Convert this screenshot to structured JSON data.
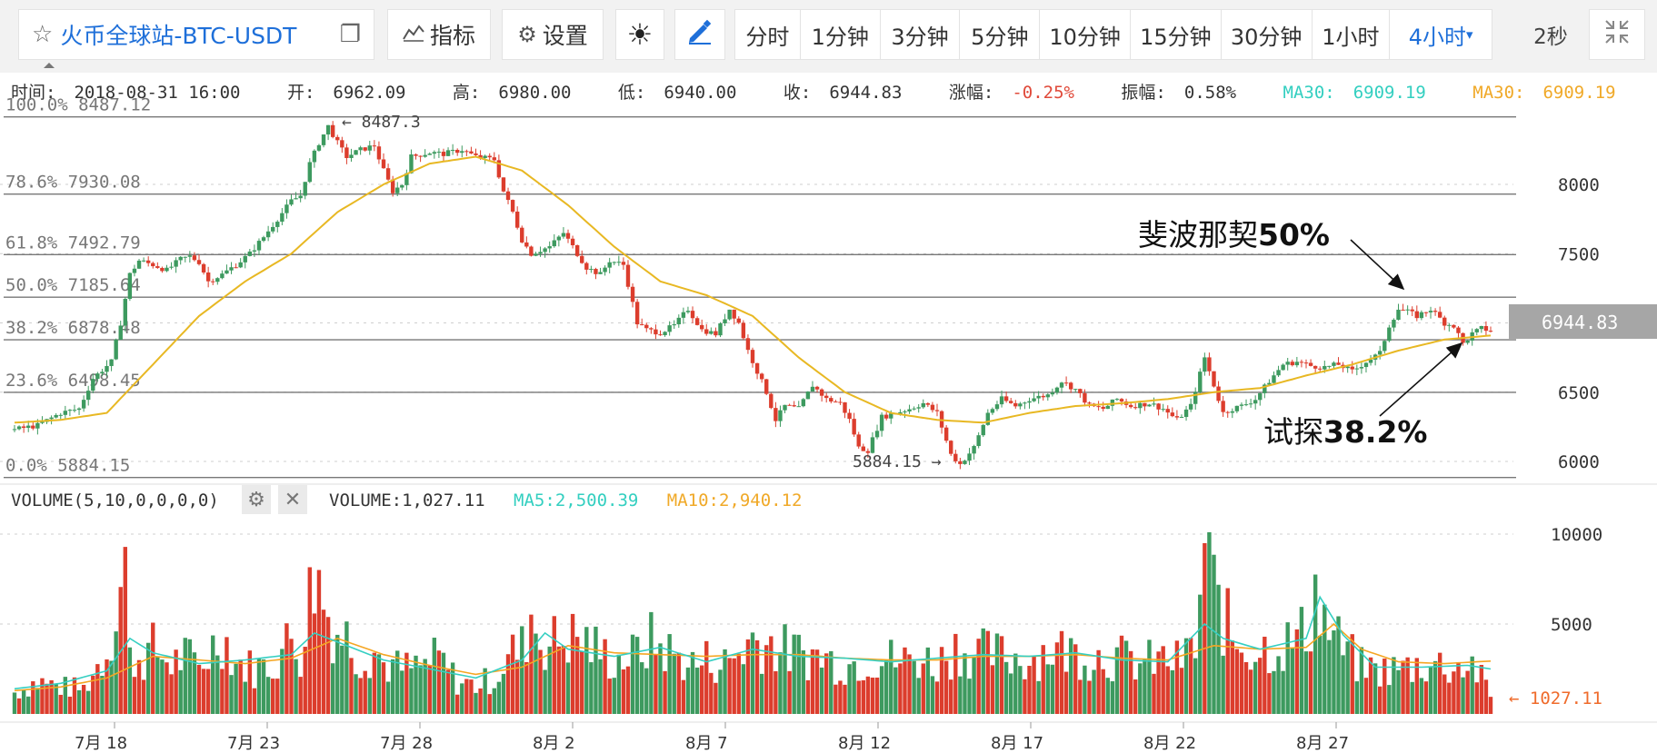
{
  "toolbar": {
    "symbol": "火币全球站-BTC-USDT",
    "star_icon": "star-icon",
    "copy_icon": "copy-icon",
    "indicator_label": "指标",
    "settings_label": "设置",
    "intervals": [
      "分时",
      "1分钟",
      "3分钟",
      "5分钟",
      "10分钟",
      "15分钟",
      "30分钟",
      "1小时",
      "4小时"
    ],
    "active_interval": "4小时",
    "refresh": "2秒"
  },
  "info": {
    "time_label": "时间:",
    "time": "2018-08-31 16:00",
    "open_label": "开:",
    "open": "6962.09",
    "high_label": "高:",
    "high": "6980.00",
    "low_label": "低:",
    "low": "6940.00",
    "close_label": "收:",
    "close": "6944.83",
    "change_label": "涨幅:",
    "change": "-0.25%",
    "amp_label": "振幅:",
    "amp": "0.58%",
    "ma1_label": "MA30:",
    "ma1": "6909.19",
    "ma2_label": "MA30:",
    "ma2": "6909.19"
  },
  "volume_info": {
    "title": "VOLUME(5,10,0,0,0,0)",
    "volume_label": "VOLUME:",
    "volume": "1,027.11",
    "ma5_label": "MA5:",
    "ma5": "2,500.39",
    "ma10_label": "MA10:",
    "ma10": "2,940.12"
  },
  "colors": {
    "up": "#3d9a5f",
    "down": "#dc3d2d",
    "ma30": "#e8b823",
    "ma5": "#35cfc2",
    "ma10": "#f5a623",
    "accent": "#1e6fd9"
  },
  "chart_data": [
    {
      "type": "candlestick",
      "yticks": [
        6000,
        6500,
        7000,
        7500,
        8000
      ],
      "ylim": [
        5800,
        8580
      ],
      "x_labels": [
        "7月 18",
        "7月 23",
        "7月 28",
        "8月 2",
        "8月 7",
        "8月 12",
        "8月 17",
        "8月 22",
        "8月 27"
      ],
      "fib_levels": [
        {
          "label": "100.0% 8487.12",
          "value": 8487.12
        },
        {
          "label": "78.6% 7930.08",
          "value": 7930.08
        },
        {
          "label": "61.8% 7492.79",
          "value": 7492.79
        },
        {
          "label": "50.0% 7185.64",
          "value": 7185.64
        },
        {
          "label": "38.2% 6878.48",
          "value": 6878.48
        },
        {
          "label": "23.6% 6498.45",
          "value": 6498.45
        },
        {
          "label": "0.0% 5884.15",
          "value": 5884.15
        }
      ],
      "high_marker": "← 8487.3",
      "low_marker": "5884.15 →",
      "last_price": "6944.83",
      "annotations": [
        {
          "text_cn": "斐波那契",
          "text_bold": "50%"
        },
        {
          "text_cn": "试探",
          "text_bold": "38.2%"
        }
      ],
      "close_path": [
        [
          0,
          6230
        ],
        [
          5,
          6260
        ],
        [
          10,
          6350
        ],
        [
          14,
          6380
        ],
        [
          17,
          6600
        ],
        [
          21,
          6720
        ],
        [
          23,
          7000
        ],
        [
          25,
          7350
        ],
        [
          27,
          7450
        ],
        [
          30,
          7420
        ],
        [
          33,
          7380
        ],
        [
          36,
          7460
        ],
        [
          38,
          7480
        ],
        [
          40,
          7440
        ],
        [
          42,
          7300
        ],
        [
          45,
          7350
        ],
        [
          48,
          7420
        ],
        [
          51,
          7500
        ],
        [
          54,
          7620
        ],
        [
          57,
          7750
        ],
        [
          60,
          7880
        ],
        [
          62,
          7920
        ],
        [
          64,
          8150
        ],
        [
          66,
          8300
        ],
        [
          68,
          8420
        ],
        [
          70,
          8300
        ],
        [
          72,
          8200
        ],
        [
          75,
          8250
        ],
        [
          78,
          8280
        ],
        [
          80,
          8100
        ],
        [
          82,
          7950
        ],
        [
          84,
          8000
        ],
        [
          86,
          8200
        ],
        [
          90,
          8230
        ],
        [
          93,
          8220
        ],
        [
          97,
          8250
        ],
        [
          100,
          8200
        ],
        [
          104,
          8180
        ],
        [
          106,
          7950
        ],
        [
          108,
          7800
        ],
        [
          110,
          7600
        ],
        [
          112,
          7500
        ],
        [
          116,
          7550
        ],
        [
          119,
          7650
        ],
        [
          121,
          7550
        ],
        [
          124,
          7400
        ],
        [
          127,
          7350
        ],
        [
          129,
          7450
        ],
        [
          132,
          7420
        ],
        [
          135,
          7000
        ],
        [
          137,
          6950
        ],
        [
          140,
          6930
        ],
        [
          143,
          6980
        ],
        [
          146,
          7100
        ],
        [
          149,
          6950
        ],
        [
          152,
          6920
        ],
        [
          155,
          7100
        ],
        [
          157,
          7000
        ],
        [
          159,
          6800
        ],
        [
          161,
          6650
        ],
        [
          163,
          6500
        ],
        [
          165,
          6300
        ],
        [
          167,
          6400
        ],
        [
          170,
          6380
        ],
        [
          173,
          6550
        ],
        [
          176,
          6450
        ],
        [
          179,
          6420
        ],
        [
          181,
          6300
        ],
        [
          183,
          6100
        ],
        [
          185,
          6080
        ],
        [
          188,
          6320
        ],
        [
          191,
          6350
        ],
        [
          194,
          6380
        ],
        [
          197,
          6420
        ],
        [
          200,
          6350
        ],
        [
          203,
          6050
        ],
        [
          205,
          5980
        ],
        [
          208,
          6100
        ],
        [
          211,
          6350
        ],
        [
          214,
          6450
        ],
        [
          217,
          6400
        ],
        [
          220,
          6450
        ],
        [
          224,
          6480
        ],
        [
          227,
          6580
        ],
        [
          230,
          6520
        ],
        [
          233,
          6400
        ],
        [
          236,
          6380
        ],
        [
          239,
          6450
        ],
        [
          242,
          6400
        ],
        [
          246,
          6420
        ],
        [
          249,
          6380
        ],
        [
          252,
          6300
        ],
        [
          255,
          6400
        ],
        [
          258,
          6750
        ],
        [
          260,
          6550
        ],
        [
          262,
          6350
        ],
        [
          264,
          6380
        ],
        [
          266,
          6400
        ],
        [
          269,
          6450
        ],
        [
          272,
          6580
        ],
        [
          275,
          6700
        ],
        [
          278,
          6720
        ],
        [
          281,
          6690
        ],
        [
          284,
          6680
        ],
        [
          287,
          6700
        ],
        [
          290,
          6650
        ],
        [
          293,
          6720
        ],
        [
          296,
          6780
        ],
        [
          298,
          6980
        ],
        [
          300,
          7100
        ],
        [
          302,
          7080
        ],
        [
          304,
          7050
        ],
        [
          307,
          7100
        ],
        [
          310,
          7000
        ],
        [
          312,
          6980
        ],
        [
          314,
          6850
        ],
        [
          316,
          6920
        ],
        [
          318,
          6960
        ],
        [
          320,
          6944
        ]
      ],
      "ma30_path": [
        [
          0,
          6280
        ],
        [
          10,
          6300
        ],
        [
          20,
          6350
        ],
        [
          30,
          6700
        ],
        [
          40,
          7050
        ],
        [
          50,
          7300
        ],
        [
          60,
          7500
        ],
        [
          70,
          7800
        ],
        [
          80,
          8000
        ],
        [
          90,
          8150
        ],
        [
          100,
          8200
        ],
        [
          110,
          8100
        ],
        [
          120,
          7850
        ],
        [
          130,
          7550
        ],
        [
          140,
          7300
        ],
        [
          150,
          7200
        ],
        [
          160,
          7050
        ],
        [
          170,
          6750
        ],
        [
          180,
          6500
        ],
        [
          190,
          6350
        ],
        [
          200,
          6300
        ],
        [
          210,
          6280
        ],
        [
          220,
          6350
        ],
        [
          230,
          6400
        ],
        [
          240,
          6420
        ],
        [
          250,
          6450
        ],
        [
          260,
          6500
        ],
        [
          270,
          6530
        ],
        [
          280,
          6620
        ],
        [
          290,
          6700
        ],
        [
          300,
          6800
        ],
        [
          310,
          6880
        ],
        [
          320,
          6909
        ]
      ]
    },
    {
      "type": "bar",
      "name": "volume",
      "yticks": [
        5000,
        10000
      ],
      "ylim": [
        0,
        11000
      ],
      "last_marker": "← 1027.11",
      "volume_path": [
        [
          0,
          1200
        ],
        [
          5,
          1800
        ],
        [
          10,
          1500
        ],
        [
          15,
          1400
        ],
        [
          20,
          3500
        ],
        [
          24,
          8500
        ],
        [
          25,
          3000
        ],
        [
          28,
          3200
        ],
        [
          30,
          3600
        ],
        [
          34,
          2800
        ],
        [
          37,
          3200
        ],
        [
          40,
          2600
        ],
        [
          45,
          4500
        ],
        [
          48,
          2900
        ],
        [
          52,
          2500
        ],
        [
          56,
          2800
        ],
        [
          60,
          4200
        ],
        [
          62,
          3400
        ],
        [
          65,
          8000
        ],
        [
          66,
          7200
        ],
        [
          68,
          5500
        ],
        [
          70,
          4600
        ],
        [
          72,
          4300
        ],
        [
          75,
          3200
        ],
        [
          78,
          3600
        ],
        [
          80,
          2800
        ],
        [
          84,
          2500
        ],
        [
          88,
          2600
        ],
        [
          92,
          3100
        ],
        [
          96,
          1800
        ],
        [
          100,
          1600
        ],
        [
          104,
          2000
        ],
        [
          108,
          3400
        ],
        [
          110,
          3600
        ],
        [
          112,
          5600
        ],
        [
          114,
          4200
        ],
        [
          116,
          3900
        ],
        [
          120,
          4300
        ],
        [
          124,
          4000
        ],
        [
          127,
          3400
        ],
        [
          130,
          3000
        ],
        [
          134,
          3200
        ],
        [
          138,
          4000
        ],
        [
          141,
          3600
        ],
        [
          144,
          3100
        ],
        [
          148,
          2700
        ],
        [
          150,
          3000
        ],
        [
          154,
          2800
        ],
        [
          158,
          3600
        ],
        [
          160,
          4200
        ],
        [
          164,
          3900
        ],
        [
          168,
          3400
        ],
        [
          172,
          3300
        ],
        [
          176,
          3100
        ],
        [
          180,
          2700
        ],
        [
          184,
          3000
        ],
        [
          188,
          3200
        ],
        [
          192,
          2900
        ],
        [
          196,
          3100
        ],
        [
          200,
          2800
        ],
        [
          204,
          3700
        ],
        [
          208,
          3400
        ],
        [
          212,
          3300
        ],
        [
          216,
          3200
        ],
        [
          220,
          3000
        ],
        [
          224,
          3600
        ],
        [
          228,
          3500
        ],
        [
          232,
          3300
        ],
        [
          236,
          3200
        ],
        [
          240,
          3100
        ],
        [
          244,
          2800
        ],
        [
          248,
          3000
        ],
        [
          252,
          2900
        ],
        [
          256,
          3600
        ],
        [
          258,
          9000
        ],
        [
          260,
          6800
        ],
        [
          264,
          4200
        ],
        [
          268,
          3600
        ],
        [
          272,
          3700
        ],
        [
          276,
          3900
        ],
        [
          280,
          4500
        ],
        [
          282,
          6900
        ],
        [
          284,
          5100
        ],
        [
          288,
          3600
        ],
        [
          292,
          2600
        ],
        [
          296,
          2400
        ],
        [
          300,
          2500
        ],
        [
          304,
          2700
        ],
        [
          308,
          2800
        ],
        [
          312,
          2600
        ],
        [
          316,
          2800
        ],
        [
          320,
          1027
        ]
      ],
      "ma5_path": [
        [
          0,
          1400
        ],
        [
          10,
          1700
        ],
        [
          20,
          2400
        ],
        [
          25,
          4200
        ],
        [
          30,
          3400
        ],
        [
          40,
          2800
        ],
        [
          50,
          3000
        ],
        [
          60,
          3300
        ],
        [
          65,
          4500
        ],
        [
          70,
          4000
        ],
        [
          80,
          3000
        ],
        [
          90,
          2500
        ],
        [
          100,
          2000
        ],
        [
          110,
          3000
        ],
        [
          115,
          4500
        ],
        [
          120,
          3600
        ],
        [
          130,
          3200
        ],
        [
          140,
          3700
        ],
        [
          150,
          2900
        ],
        [
          160,
          3600
        ],
        [
          170,
          3200
        ],
        [
          180,
          3100
        ],
        [
          190,
          2900
        ],
        [
          200,
          3100
        ],
        [
          210,
          3300
        ],
        [
          220,
          3200
        ],
        [
          230,
          3400
        ],
        [
          240,
          3000
        ],
        [
          250,
          2900
        ],
        [
          258,
          5000
        ],
        [
          262,
          4200
        ],
        [
          270,
          3600
        ],
        [
          280,
          4200
        ],
        [
          283,
          6500
        ],
        [
          288,
          4400
        ],
        [
          295,
          2600
        ],
        [
          305,
          2600
        ],
        [
          315,
          2700
        ],
        [
          320,
          2500
        ]
      ],
      "ma10_path": [
        [
          0,
          1300
        ],
        [
          10,
          1500
        ],
        [
          20,
          2000
        ],
        [
          30,
          3200
        ],
        [
          40,
          3000
        ],
        [
          50,
          2800
        ],
        [
          60,
          3100
        ],
        [
          70,
          4200
        ],
        [
          80,
          3300
        ],
        [
          90,
          2700
        ],
        [
          100,
          2200
        ],
        [
          110,
          2600
        ],
        [
          120,
          3800
        ],
        [
          130,
          3400
        ],
        [
          140,
          3300
        ],
        [
          150,
          3200
        ],
        [
          160,
          3300
        ],
        [
          170,
          3300
        ],
        [
          180,
          3100
        ],
        [
          190,
          3000
        ],
        [
          200,
          3000
        ],
        [
          210,
          3200
        ],
        [
          220,
          3200
        ],
        [
          230,
          3300
        ],
        [
          240,
          3100
        ],
        [
          250,
          3000
        ],
        [
          260,
          3800
        ],
        [
          270,
          3600
        ],
        [
          280,
          3700
        ],
        [
          286,
          5000
        ],
        [
          292,
          3600
        ],
        [
          300,
          2900
        ],
        [
          310,
          2800
        ],
        [
          320,
          2940
        ]
      ]
    }
  ]
}
